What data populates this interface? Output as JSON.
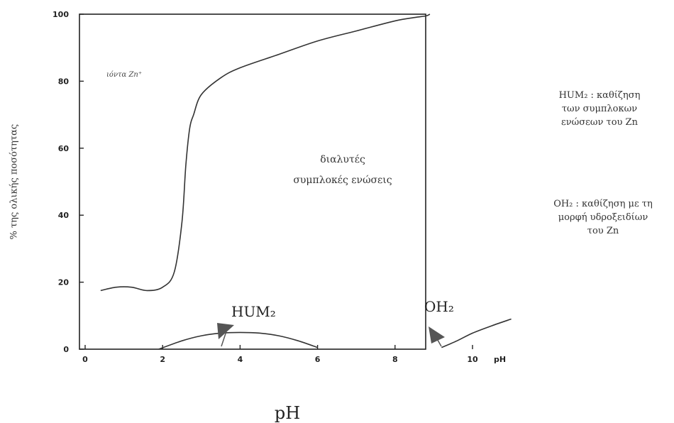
{
  "chart_data": {
    "type": "line",
    "xlabel": "pH",
    "ylabel": "% της ολικής ποσότητας",
    "xlim": [
      0,
      11
    ],
    "ylim": [
      0,
      100
    ],
    "x_ticks": [
      "0",
      "2",
      "4",
      "6",
      "8",
      "10"
    ],
    "x_tick_suffix": "pH",
    "y_ticks": [
      "0",
      "20",
      "40",
      "60",
      "80",
      "100"
    ],
    "series": [
      {
        "name": "",
        "x": [
          0.4,
          0.8,
          1.2,
          1.6,
          2.0,
          2.3,
          2.5,
          2.6,
          2.7,
          2.8,
          3.0,
          3.5,
          4.0,
          5.0,
          6.0,
          7.0,
          8.0,
          8.5,
          8.8,
          8.9
        ],
        "y": [
          17.5,
          18.5,
          18.5,
          17.5,
          18.5,
          23,
          38,
          55,
          66,
          70,
          76,
          81,
          84,
          88,
          92,
          95,
          98,
          99,
          99.5,
          100
        ]
      },
      {
        "name": "HUM₂",
        "x": [
          1.9,
          2.5,
          3.0,
          3.5,
          4.0,
          4.5,
          5.0,
          5.5,
          6.0
        ],
        "y": [
          0,
          2.5,
          4.0,
          4.8,
          5.0,
          4.8,
          4.0,
          2.5,
          0.5
        ]
      },
      {
        "name": "OH₂",
        "x": [
          9.2,
          9.6,
          10.0,
          10.5,
          11.0
        ],
        "y": [
          0.5,
          2.5,
          4.8,
          7.0,
          9.0
        ]
      }
    ],
    "annotations": {
      "top_left_label": "ιόντα Zn⁺",
      "middle_label_line1": "διαλυτές",
      "middle_label_line2": "συμπλοκές ενώσεις",
      "hum_label": "HUM₂",
      "oh_label": "OH₂"
    }
  },
  "notes": {
    "note1_line1": "HUM₂ : καθίζηση",
    "note1_line2": "των συμπλοκων",
    "note1_line3": "ενώσεων του Zn",
    "note2_line1": "OH₂ : καθίζηση με τη",
    "note2_line2": "μορφή υδροξειδίων",
    "note2_line3": "του Zn"
  },
  "colors": {
    "line": "#333333",
    "arrow": "#555555"
  }
}
